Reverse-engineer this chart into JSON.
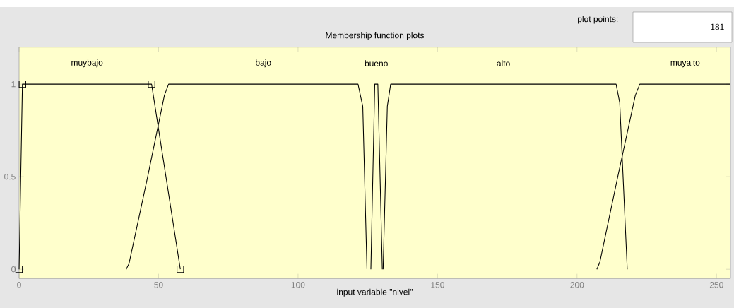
{
  "chart_data": {
    "type": "line",
    "title": "Membership function plots",
    "xlabel": "input variable \"nivel\"",
    "annotations": [
      "plot points:",
      "181"
    ],
    "xlim": [
      0,
      255
    ],
    "ylim": [
      -0.05,
      1.2
    ],
    "xticks": [
      0,
      50,
      100,
      150,
      200,
      250
    ],
    "yticks": [
      0,
      0.5,
      1
    ],
    "grid": false,
    "legend": false,
    "series": [
      {
        "name": "muybajo",
        "color": "#000000",
        "marker": "square",
        "x": [
          0,
          1.2,
          47.5,
          57.8
        ],
        "values": [
          0,
          1,
          1,
          0
        ]
      },
      {
        "name": "bajo",
        "color": "#000000",
        "x": [
          38.4,
          39.4,
          46.1,
          52.1,
          53.6,
          121.5,
          123.2,
          124.7
        ],
        "values": [
          0,
          0.03,
          0.5,
          0.94,
          1,
          1,
          0.88,
          0
        ]
      },
      {
        "name": "bueno",
        "color": "#000000",
        "x": [
          126.1,
          127.5,
          128.6,
          130.2
        ],
        "values": [
          0,
          1,
          1,
          0
        ]
      },
      {
        "name": "alto",
        "color": "#000000",
        "x": [
          130.5,
          132,
          133.2,
          214,
          215.3,
          218
        ],
        "values": [
          0,
          0.88,
          1,
          1,
          0.9,
          0
        ]
      },
      {
        "name": "muyalto",
        "color": "#000000",
        "x": [
          207.1,
          208.2,
          214.6,
          220.9,
          222.5,
          255
        ],
        "values": [
          0,
          0.04,
          0.5,
          0.94,
          1,
          1
        ]
      }
    ]
  }
}
